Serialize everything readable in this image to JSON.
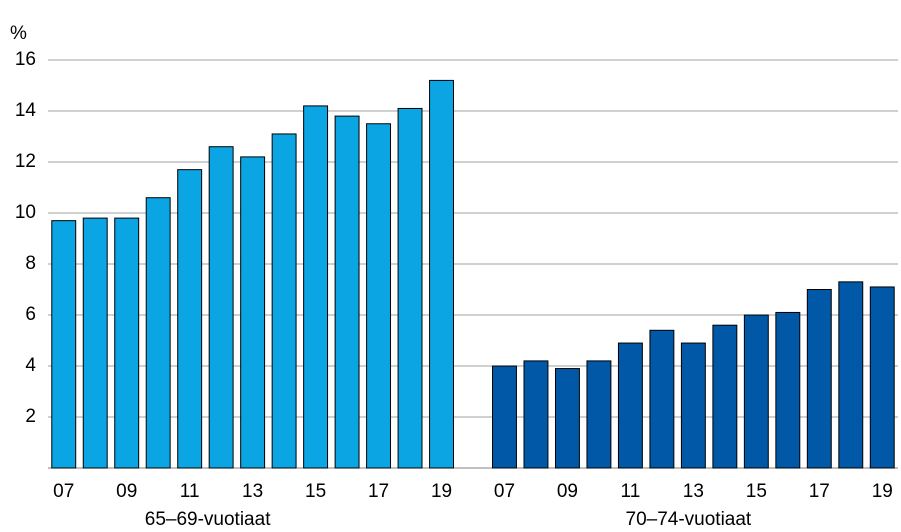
{
  "chart_data": {
    "type": "bar",
    "y_label": "%",
    "categories": [
      "07",
      null,
      "09",
      null,
      "11",
      null,
      "13",
      null,
      "15",
      null,
      "17",
      null,
      "19"
    ],
    "series": [
      {
        "name": "65–69-vuotiaat",
        "color": "#0aa5e2",
        "values": [
          9.7,
          9.8,
          9.8,
          10.6,
          11.7,
          12.6,
          12.2,
          13.1,
          14.2,
          13.8,
          13.5,
          14.1,
          15.2
        ]
      },
      {
        "name": "70–74-vuotiaat",
        "color": "#0058a6",
        "values": [
          4.0,
          4.2,
          3.9,
          4.2,
          4.9,
          5.4,
          4.9,
          5.6,
          6.0,
          6.1,
          7.0,
          7.3,
          7.1
        ]
      }
    ],
    "ylim": [
      0,
      16
    ],
    "yticks": [
      2,
      4,
      6,
      8,
      10,
      12,
      14,
      16
    ],
    "grid": true
  }
}
